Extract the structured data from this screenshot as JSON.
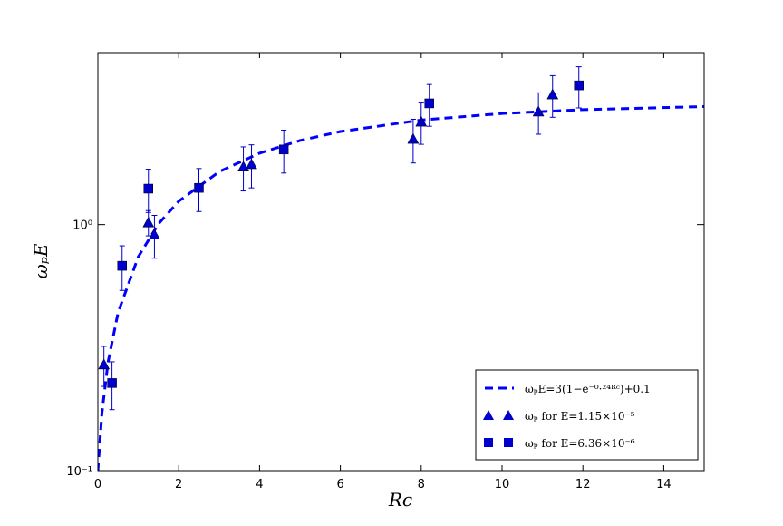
{
  "chart_data": {
    "type": "scatter",
    "xlabel": "Rc",
    "ylabel": "ωₚE",
    "xlim": [
      0,
      15
    ],
    "xticks": [
      0,
      2,
      4,
      6,
      8,
      10,
      12,
      14
    ],
    "ylim": [
      0.1,
      5
    ],
    "yticks": [
      {
        "value": 0.1,
        "label": "10⁻¹"
      },
      {
        "value": 1,
        "label": "10⁰"
      }
    ],
    "yscale": "log",
    "legend_loc": "lower right",
    "series": [
      {
        "name": "ωₚE=3(1−e⁻⁰·²⁴ᴿᶜ)+0.1",
        "kind": "line",
        "color": "#0000ff",
        "x": [
          0,
          0.1,
          0.25,
          0.5,
          1,
          1.5,
          2,
          3,
          4,
          5,
          6,
          8,
          10,
          12,
          15
        ],
        "values": [
          0.1,
          0.171,
          0.275,
          0.439,
          0.74,
          1.007,
          1.244,
          1.64,
          1.951,
          2.196,
          2.389,
          2.66,
          2.828,
          2.932,
          3.018
        ]
      },
      {
        "name": "ωₚ for E=1.15×10⁻⁵",
        "kind": "marker",
        "marker": "triangle",
        "color": "#0000cc",
        "x": [
          0.15,
          1.25,
          1.4,
          3.6,
          3.8,
          7.8,
          8.0,
          10.9,
          11.25
        ],
        "values": [
          0.27,
          1.02,
          0.91,
          1.72,
          1.76,
          2.23,
          2.62,
          2.88,
          3.38
        ],
        "errors": [
          0.05,
          0.12,
          0.18,
          0.35,
          0.35,
          0.45,
          0.5,
          0.55,
          0.65
        ]
      },
      {
        "name": "ωₚ for E=6.36×10⁻⁶",
        "kind": "marker",
        "marker": "square",
        "color": "#0000cc",
        "x": [
          0.35,
          0.6,
          1.25,
          2.5,
          4.6,
          8.2,
          11.9
        ],
        "values": [
          0.227,
          0.68,
          1.4,
          1.41,
          2.02,
          3.11,
          3.68
        ],
        "errors": [
          0.05,
          0.14,
          0.28,
          0.28,
          0.4,
          0.6,
          0.7
        ]
      }
    ]
  }
}
